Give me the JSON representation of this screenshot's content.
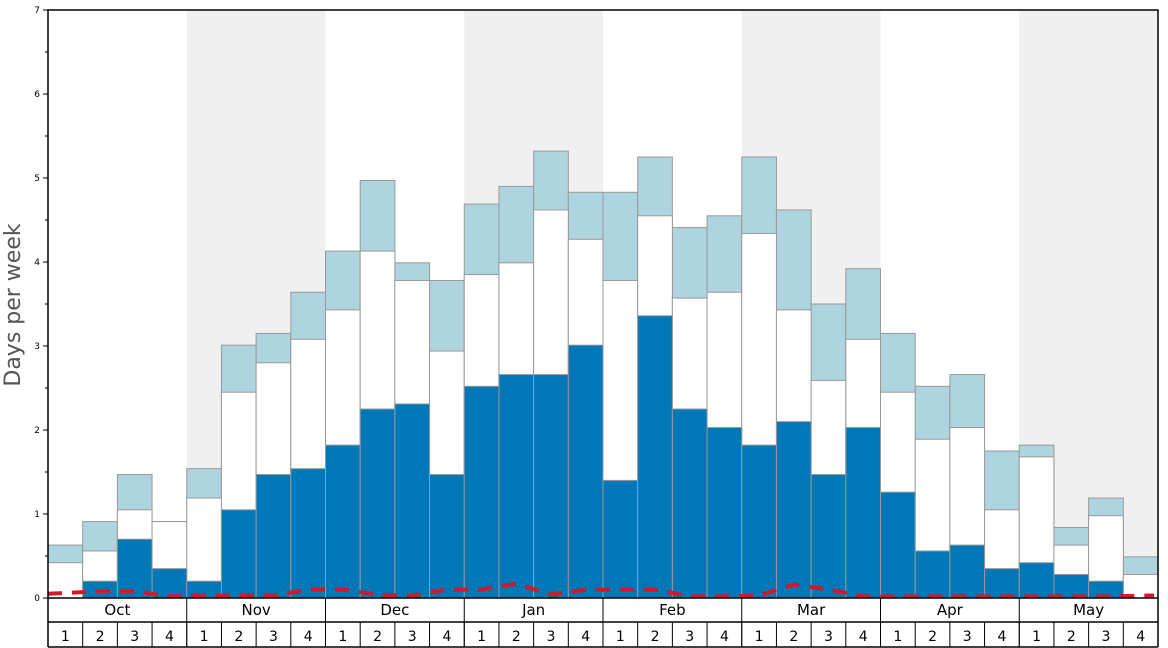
{
  "chart_data": {
    "type": "bar",
    "ylabel": "Days per week",
    "xlabel": "",
    "ylim": [
      0,
      7
    ],
    "y_ticks": [
      "0",
      "1",
      "2",
      "3",
      "4",
      "5",
      "6",
      "7"
    ],
    "months": [
      "Oct",
      "Nov",
      "Dec",
      "Jan",
      "Feb",
      "Mar",
      "Apr",
      "May"
    ],
    "week_labels": [
      "1",
      "2",
      "3",
      "4"
    ],
    "categories": [
      "Oct 1",
      "Oct 2",
      "Oct 3",
      "Oct 4",
      "Nov 1",
      "Nov 2",
      "Nov 3",
      "Nov 4",
      "Dec 1",
      "Dec 2",
      "Dec 3",
      "Dec 4",
      "Jan 1",
      "Jan 2",
      "Jan 3",
      "Jan 4",
      "Feb 1",
      "Feb 2",
      "Feb 3",
      "Feb 4",
      "Mar 1",
      "Mar 2",
      "Mar 3",
      "Mar 4",
      "Apr 1",
      "Apr 2",
      "Apr 3",
      "Apr 4",
      "May 1",
      "May 2",
      "May 3",
      "May 4"
    ],
    "series": [
      {
        "name": "Dark blue",
        "color": "#0077b6",
        "values": [
          0,
          0.2,
          0.7,
          0.35,
          0.2,
          1.05,
          1.47,
          1.54,
          1.82,
          2.25,
          2.31,
          1.47,
          2.52,
          2.66,
          2.66,
          3.01,
          1.4,
          3.36,
          2.25,
          2.03,
          1.82,
          2.1,
          1.47,
          2.03,
          1.26,
          0.56,
          0.63,
          0.35,
          0.42,
          0.28,
          0.2,
          0
        ]
      },
      {
        "name": "White (cumulative top)",
        "color": "#ffffff",
        "values": [
          0.42,
          0.56,
          1.05,
          0.91,
          1.19,
          2.45,
          2.8,
          3.08,
          3.43,
          4.13,
          3.78,
          2.94,
          3.85,
          3.99,
          4.62,
          4.27,
          3.78,
          4.55,
          3.57,
          3.64,
          4.34,
          3.43,
          2.59,
          3.08,
          2.45,
          1.89,
          2.03,
          1.05,
          1.68,
          0.63,
          0.98,
          0.28
        ]
      },
      {
        "name": "Light blue (cumulative top)",
        "color": "#aed4e0",
        "values": [
          0.63,
          0.91,
          1.47,
          0.91,
          1.54,
          3.01,
          3.15,
          3.64,
          4.13,
          4.97,
          3.99,
          3.78,
          4.69,
          4.9,
          5.32,
          4.83,
          4.83,
          5.25,
          4.41,
          4.55,
          5.25,
          4.62,
          3.5,
          3.92,
          3.15,
          2.52,
          2.66,
          1.75,
          1.82,
          0.84,
          1.19,
          0.49
        ]
      },
      {
        "name": "Dashed red line",
        "color": "#d0192b",
        "values": [
          0.05,
          0.08,
          0.08,
          0.02,
          0.03,
          0.03,
          0.03,
          0.1,
          0.1,
          0.04,
          0.03,
          0.1,
          0.1,
          0.17,
          0.04,
          0.1,
          0.1,
          0.1,
          0.02,
          0.02,
          0.03,
          0.16,
          0.1,
          0.02,
          0.02,
          0.02,
          0.02,
          0.02,
          0.02,
          0.02,
          0.02,
          0.03
        ]
      }
    ],
    "shaded_months": [
      "Nov",
      "Jan",
      "Mar",
      "May"
    ],
    "shade_color": "#f0f0f0",
    "grid": false,
    "legend": "none"
  }
}
